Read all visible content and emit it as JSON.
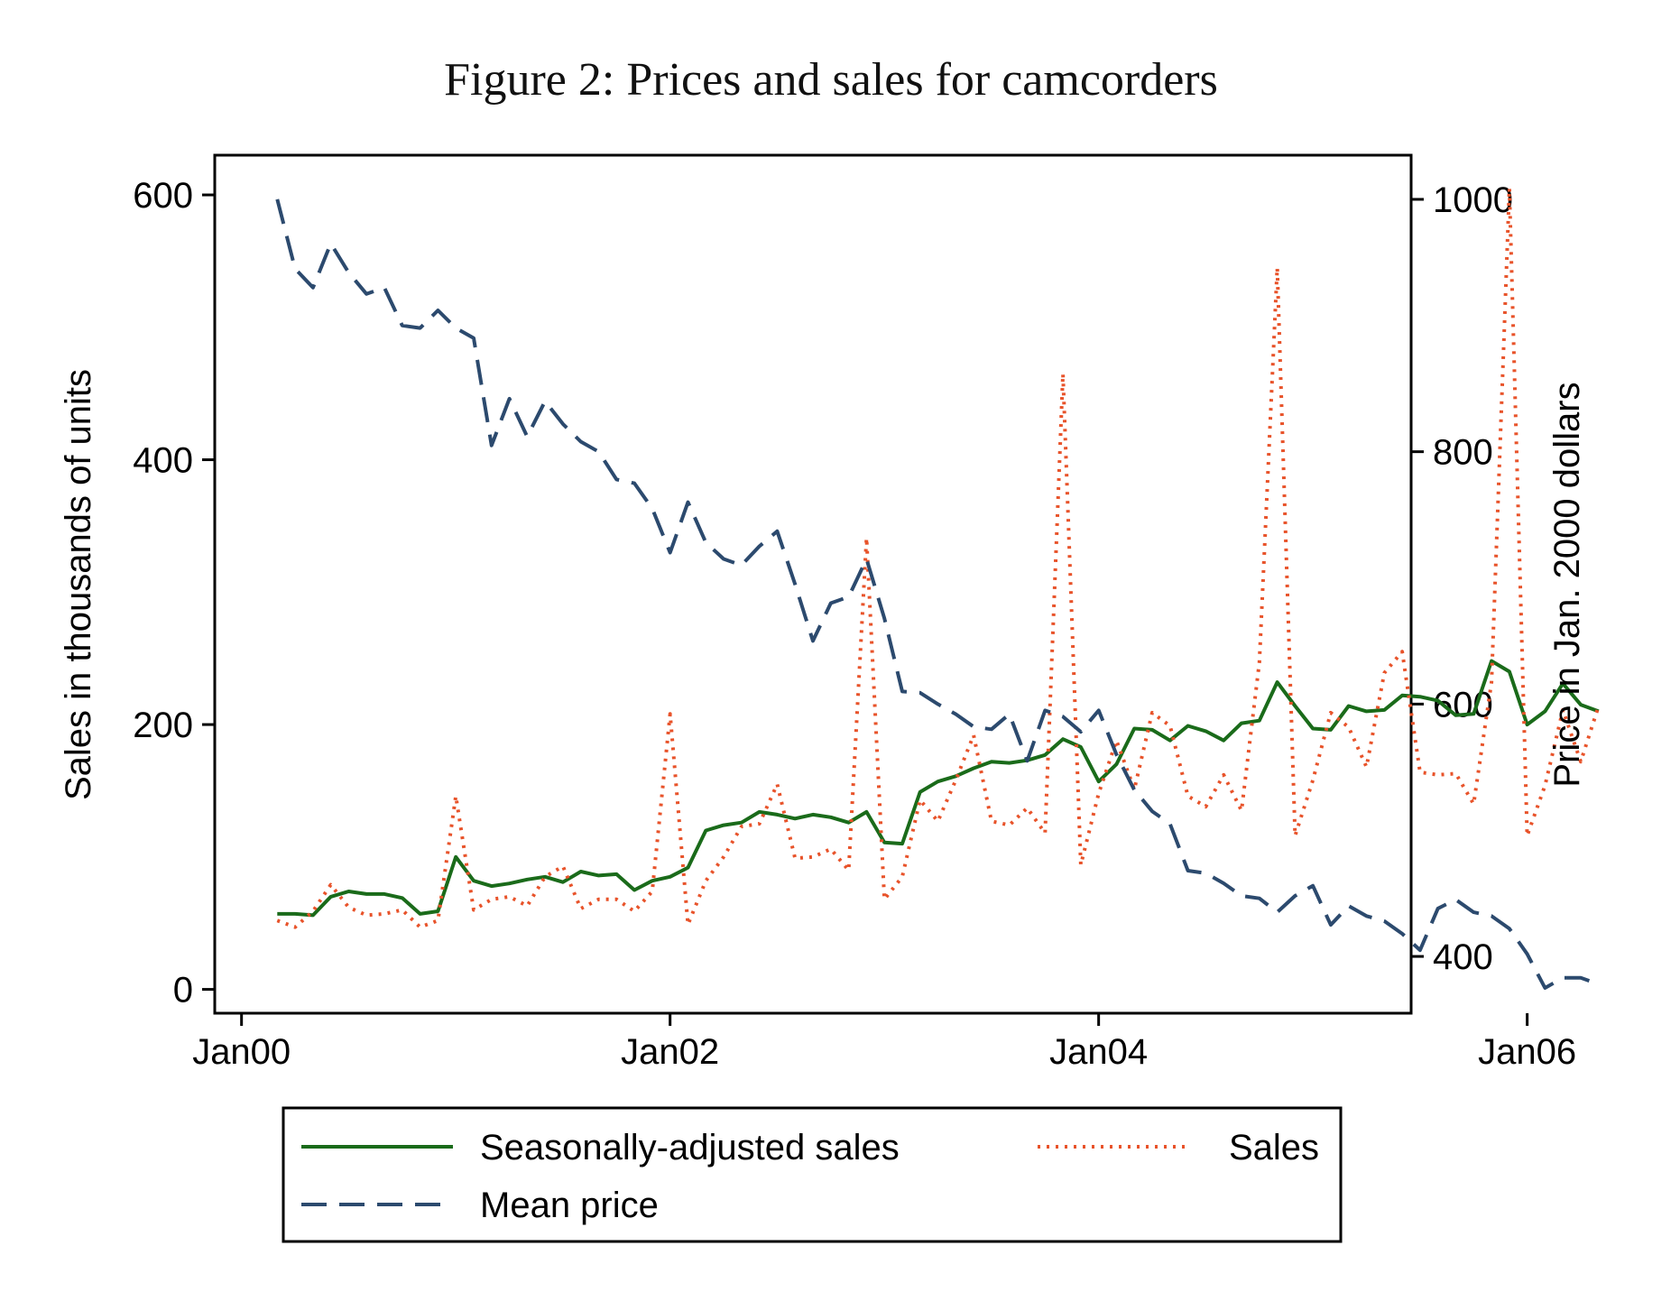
{
  "chart_data": {
    "type": "line",
    "title": "Figure 2: Prices and sales for camcorders",
    "ylabel_left": "Sales in thousands of units",
    "ylabel_right": "Price in Jan. 2000 dollars",
    "xlabel": "",
    "x_ticks": [
      "Jan00",
      "Jan02",
      "Jan04",
      "Jan06"
    ],
    "y_left_ticks": [
      "0",
      "200",
      "400",
      "600"
    ],
    "y_right_ticks": [
      "400",
      "600",
      "800",
      "1000"
    ],
    "ylim_left": [
      -18,
      630
    ],
    "ylim_right": [
      355,
      1035
    ],
    "x_start": "2000-01",
    "xlim_months": [
      -1.5,
      65.5
    ],
    "grid": false,
    "legend_position": "bottom",
    "legend": [
      {
        "label": "Seasonally-adjusted sales",
        "series": "sa_sales"
      },
      {
        "label": "Sales",
        "series": "sales"
      },
      {
        "label": "Mean price",
        "series": "price"
      }
    ],
    "series": [
      {
        "id": "sa_sales",
        "name": "Seasonally-adjusted sales",
        "axis": "left",
        "color": "#1a6b1a",
        "dash": "solid",
        "start_month": 2,
        "values": [
          57,
          57,
          56,
          70,
          74,
          72,
          72,
          69,
          57,
          59,
          100,
          82,
          78,
          80,
          83,
          85,
          81,
          89,
          86,
          87,
          75,
          82,
          85,
          92,
          120,
          124,
          126,
          134,
          132,
          129,
          132,
          130,
          126,
          134,
          111,
          110,
          149,
          157,
          161,
          167,
          172,
          171,
          173,
          177,
          189,
          183,
          157,
          170,
          197,
          196,
          188,
          199,
          195,
          188,
          201,
          203,
          232,
          214,
          197,
          196,
          214,
          210,
          211,
          222,
          221,
          218,
          207,
          208,
          248,
          240,
          200,
          210,
          231,
          215,
          210
        ]
      },
      {
        "id": "sales",
        "name": "Sales",
        "axis": "left",
        "color": "#e8532a",
        "dash": "dotted",
        "start_month": 2,
        "values": [
          52,
          47,
          59,
          79,
          62,
          56,
          57,
          60,
          47,
          52,
          146,
          60,
          68,
          70,
          63,
          85,
          93,
          61,
          68,
          68,
          59,
          74,
          208,
          49,
          82,
          100,
          123,
          125,
          155,
          99,
          100,
          106,
          90,
          341,
          68,
          85,
          143,
          127,
          158,
          192,
          127,
          124,
          137,
          118,
          465,
          94,
          148,
          188,
          151,
          209,
          199,
          146,
          138,
          162,
          135,
          247,
          545,
          116,
          158,
          209,
          198,
          168,
          239,
          255,
          164,
          162,
          163,
          140,
          232,
          605,
          116,
          154,
          211,
          172,
          214
        ]
      },
      {
        "id": "price",
        "name": "Mean price",
        "axis": "right",
        "color": "#2c4a6e",
        "dash": "dashed",
        "start_month": 2,
        "values": [
          1000,
          945,
          930,
          965,
          942,
          925,
          930,
          900,
          898,
          912,
          898,
          890,
          805,
          842,
          812,
          840,
          822,
          808,
          800,
          778,
          775,
          755,
          720,
          760,
          728,
          715,
          710,
          725,
          737,
          695,
          650,
          680,
          685,
          715,
          668,
          610,
          609,
          600,
          592,
          582,
          580,
          592,
          555,
          595,
          590,
          578,
          595,
          560,
          532,
          515,
          505,
          468,
          466,
          458,
          448,
          446,
          435,
          448,
          456,
          425,
          440,
          432,
          428,
          418,
          405,
          438,
          445,
          435,
          432,
          422,
          402,
          375,
          383,
          383,
          378
        ]
      }
    ]
  }
}
